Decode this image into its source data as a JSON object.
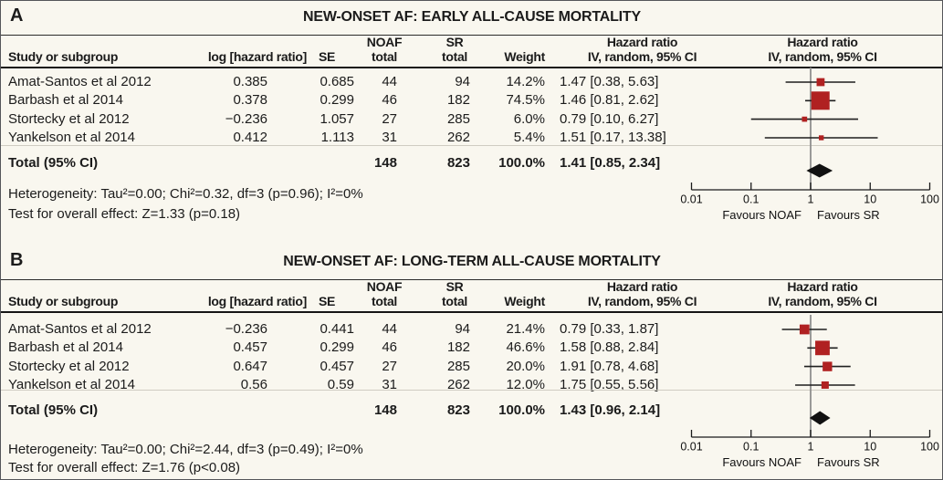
{
  "figure": {
    "colors": {
      "background": "#f9f7ef",
      "marker": "#b02121",
      "diamond": "#111111",
      "ci_line": "#1f1f1f",
      "no_effect_line": "#8f8f8f"
    },
    "headers": {
      "study": "Study or subgroup",
      "log_hr": "log [hazard ratio]",
      "se": "SE",
      "noaf_line1": "NOAF",
      "noaf_line2": "total",
      "sr_line1": "SR",
      "sr_line2": "total",
      "weight": "Weight",
      "hr_line1": "Hazard ratio",
      "hr_line2": "IV, random, 95% CI",
      "hr_plot_line1": "Hazard ratio",
      "hr_plot_line2": "IV, random, 95% CI"
    }
  },
  "chart_data": [
    {
      "type": "forest",
      "panel_label": "A",
      "title": "NEW-ONSET AF: EARLY ALL-CAUSE MORTALITY",
      "x_axis": {
        "scale": "log",
        "ticks": [
          "0.01",
          "0.1",
          "1",
          "10",
          "100"
        ],
        "favours_left": "Favours NOAF",
        "favours_right": "Favours SR"
      },
      "studies": [
        {
          "name": "Amat-Santos et al 2012",
          "log_hr": "0.385",
          "se": "0.685",
          "noaf_total": "44",
          "sr_total": "94",
          "weight": "14.2%",
          "weight_pct": 14.2,
          "hr_text": "1.47 [0.38, 5.63]",
          "hr": 1.47,
          "ci_low": 0.38,
          "ci_high": 5.63
        },
        {
          "name": "Barbash et al 2014",
          "log_hr": "0.378",
          "se": "0.299",
          "noaf_total": "46",
          "sr_total": "182",
          "weight": "74.5%",
          "weight_pct": 74.5,
          "hr_text": "1.46 [0.81, 2.62]",
          "hr": 1.46,
          "ci_low": 0.81,
          "ci_high": 2.62
        },
        {
          "name": "Stortecky et al 2012",
          "log_hr": "−0.236",
          "se": "1.057",
          "noaf_total": "27",
          "sr_total": "285",
          "weight": "6.0%",
          "weight_pct": 6.0,
          "hr_text": "0.79 [0.10, 6.27]",
          "hr": 0.79,
          "ci_low": 0.1,
          "ci_high": 6.27
        },
        {
          "name": "Yankelson et al 2014",
          "log_hr": "0.412",
          "se": "1.113",
          "noaf_total": "31",
          "sr_total": "262",
          "weight": "5.4%",
          "weight_pct": 5.4,
          "hr_text": "1.51 [0.17, 13.38]",
          "hr": 1.51,
          "ci_low": 0.17,
          "ci_high": 13.38
        }
      ],
      "total": {
        "label": "Total (95% CI)",
        "noaf_total": "148",
        "sr_total": "823",
        "weight": "100.0%",
        "hr_text": "1.41 [0.85, 2.34]",
        "hr": 1.41,
        "ci_low": 0.85,
        "ci_high": 2.34
      },
      "heterogeneity": "Heterogeneity: Tau²=0.00; Chi²=0.32, df=3 (p=0.96); I²=0%",
      "overall_effect": "Test for overall effect: Z=1.33 (p=0.18)"
    },
    {
      "type": "forest",
      "panel_label": "B",
      "title": "NEW-ONSET AF: LONG-TERM ALL-CAUSE MORTALITY",
      "x_axis": {
        "scale": "log",
        "ticks": [
          "0.01",
          "0.1",
          "1",
          "10",
          "100"
        ],
        "favours_left": "Favours NOAF",
        "favours_right": "Favours SR"
      },
      "studies": [
        {
          "name": "Amat-Santos et al 2012",
          "log_hr": "−0.236",
          "se": "0.441",
          "noaf_total": "44",
          "sr_total": "94",
          "weight": "21.4%",
          "weight_pct": 21.4,
          "hr_text": "0.79 [0.33, 1.87]",
          "hr": 0.79,
          "ci_low": 0.33,
          "ci_high": 1.87
        },
        {
          "name": "Barbash et al 2014",
          "log_hr": "0.457",
          "se": "0.299",
          "noaf_total": "46",
          "sr_total": "182",
          "weight": "46.6%",
          "weight_pct": 46.6,
          "hr_text": "1.58 [0.88, 2.84]",
          "hr": 1.58,
          "ci_low": 0.88,
          "ci_high": 2.84
        },
        {
          "name": "Stortecky et al 2012",
          "log_hr": "0.647",
          "se": "0.457",
          "noaf_total": "27",
          "sr_total": "285",
          "weight": "20.0%",
          "weight_pct": 20.0,
          "hr_text": "1.91 [0.78, 4.68]",
          "hr": 1.91,
          "ci_low": 0.78,
          "ci_high": 4.68
        },
        {
          "name": "Yankelson et al 2014",
          "log_hr": "0.56",
          "se": "0.59",
          "noaf_total": "31",
          "sr_total": "262",
          "weight": "12.0%",
          "weight_pct": 12.0,
          "hr_text": "1.75 [0.55, 5.56]",
          "hr": 1.75,
          "ci_low": 0.55,
          "ci_high": 5.56
        }
      ],
      "total": {
        "label": "Total (95% CI)",
        "noaf_total": "148",
        "sr_total": "823",
        "weight": "100.0%",
        "hr_text": "1.43 [0.96, 2.14]",
        "hr": 1.43,
        "ci_low": 0.96,
        "ci_high": 2.14
      },
      "heterogeneity": "Heterogeneity: Tau²=0.00; Chi²=2.44, df=3 (p=0.49); I²=0%",
      "overall_effect": "Test for overall effect: Z=1.76 (p<0.08)"
    }
  ]
}
